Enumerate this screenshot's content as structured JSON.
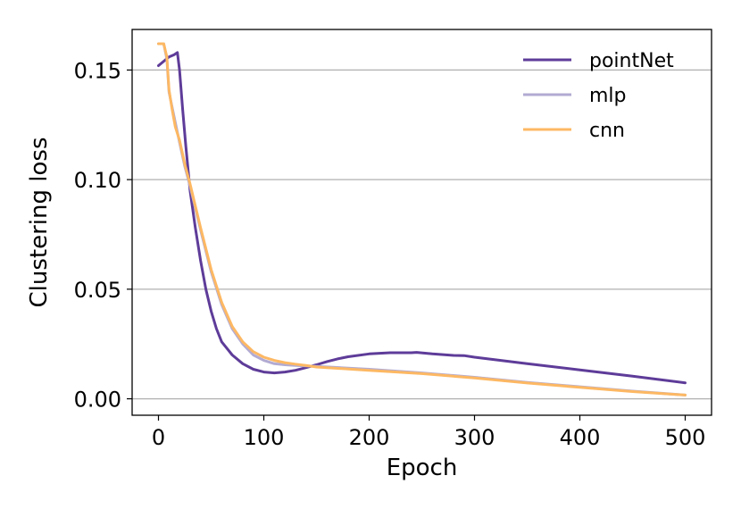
{
  "chart_data": {
    "type": "line",
    "xlabel": "Epoch",
    "ylabel": "Clustering loss",
    "xlim": [
      -25,
      525
    ],
    "ylim": [
      -0.0075,
      0.1685
    ],
    "xticks": [
      0,
      100,
      200,
      300,
      400,
      500
    ],
    "xtick_labels": [
      "0",
      "100",
      "200",
      "300",
      "400",
      "500"
    ],
    "yticks": [
      0.0,
      0.05,
      0.1,
      0.15
    ],
    "ytick_labels": [
      "0.00",
      "0.05",
      "0.10",
      "0.15"
    ],
    "grid": "horizontal",
    "legend_position": "top-right",
    "series": [
      {
        "name": "pointNet",
        "color": "#5e3c99",
        "x": [
          0,
          5,
          10,
          15,
          18,
          20,
          23,
          26,
          30,
          35,
          40,
          45,
          50,
          55,
          60,
          70,
          80,
          90,
          100,
          110,
          120,
          130,
          140,
          150,
          160,
          170,
          180,
          200,
          220,
          240,
          245,
          260,
          280,
          290,
          300,
          350,
          400,
          450,
          500
        ],
        "y": [
          0.152,
          0.154,
          0.156,
          0.157,
          0.158,
          0.15,
          0.132,
          0.115,
          0.095,
          0.078,
          0.063,
          0.05,
          0.04,
          0.032,
          0.026,
          0.02,
          0.016,
          0.0135,
          0.0122,
          0.0118,
          0.0122,
          0.013,
          0.0142,
          0.0155,
          0.017,
          0.0182,
          0.0192,
          0.0205,
          0.021,
          0.021,
          0.0212,
          0.0205,
          0.0198,
          0.0197,
          0.019,
          0.016,
          0.0132,
          0.0103,
          0.0073
        ]
      },
      {
        "name": "mlp",
        "color": "#b2abd2",
        "x": [
          0,
          5,
          8,
          10,
          13,
          16,
          20,
          25,
          30,
          40,
          50,
          60,
          70,
          80,
          90,
          100,
          110,
          120,
          130,
          140,
          150,
          200,
          250,
          300,
          350,
          400,
          450,
          500
        ],
        "y": [
          0.162,
          0.162,
          0.155,
          0.14,
          0.133,
          0.126,
          0.117,
          0.106,
          0.097,
          0.077,
          0.058,
          0.043,
          0.032,
          0.025,
          0.02,
          0.0175,
          0.016,
          0.0155,
          0.0152,
          0.015,
          0.0148,
          0.0135,
          0.0118,
          0.0098,
          0.0075,
          0.0055,
          0.0035,
          0.0017
        ]
      },
      {
        "name": "cnn",
        "color": "#fdb863",
        "x": [
          0,
          5,
          8,
          10,
          13,
          16,
          20,
          25,
          30,
          40,
          50,
          60,
          70,
          80,
          90,
          100,
          110,
          120,
          130,
          140,
          150,
          200,
          250,
          300,
          350,
          400,
          450,
          500
        ],
        "y": [
          0.162,
          0.162,
          0.156,
          0.141,
          0.132,
          0.124,
          0.118,
          0.107,
          0.098,
          0.078,
          0.059,
          0.044,
          0.033,
          0.026,
          0.0215,
          0.019,
          0.0175,
          0.0165,
          0.0158,
          0.0152,
          0.0145,
          0.013,
          0.0115,
          0.0095,
          0.0072,
          0.0052,
          0.0033,
          0.0017
        ]
      }
    ]
  }
}
